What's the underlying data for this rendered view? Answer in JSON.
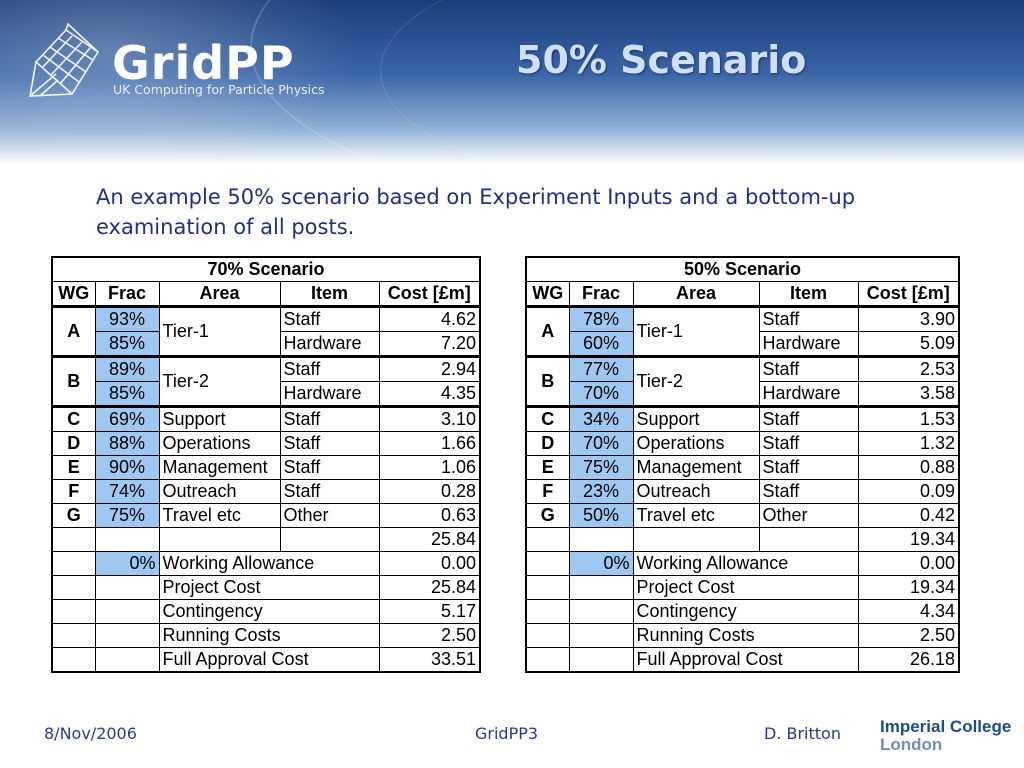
{
  "header": {
    "logo_text": "GridPP",
    "logo_subtitle": "UK Computing for Particle Physics",
    "title": "50% Scenario"
  },
  "intro": "An example 50% scenario based on Experiment Inputs and a bottom-up examination of all posts.",
  "table_left": {
    "title": "70% Scenario",
    "headers": [
      "WG",
      "Frac",
      "Area",
      "Item",
      "Cost [£m]"
    ],
    "tier": [
      {
        "wg": "A",
        "area": "Tier-1",
        "rows": [
          {
            "frac": "93%",
            "item": "Staff",
            "cost": "4.62"
          },
          {
            "frac": "85%",
            "item": "Hardware",
            "cost": "7.20"
          }
        ]
      },
      {
        "wg": "B",
        "area": "Tier-2",
        "rows": [
          {
            "frac": "89%",
            "item": "Staff",
            "cost": "2.94"
          },
          {
            "frac": "85%",
            "item": "Hardware",
            "cost": "4.35"
          }
        ]
      }
    ],
    "single": [
      {
        "wg": "C",
        "frac": "69%",
        "area": "Support",
        "item": "Staff",
        "cost": "3.10"
      },
      {
        "wg": "D",
        "frac": "88%",
        "area": "Operations",
        "item": "Staff",
        "cost": "1.66"
      },
      {
        "wg": "E",
        "frac": "90%",
        "area": "Management",
        "item": "Staff",
        "cost": "1.06"
      },
      {
        "wg": "F",
        "frac": "74%",
        "area": "Outreach",
        "item": "Staff",
        "cost": "0.28"
      },
      {
        "wg": "G",
        "frac": "75%",
        "area": "Travel etc",
        "item": "Other",
        "cost": "0.63"
      }
    ],
    "subtotal": "25.84",
    "wa_frac": "0%",
    "summary": [
      {
        "label": "Working Allowance",
        "cost": "0.00"
      },
      {
        "label": "Project Cost",
        "cost": "25.84"
      },
      {
        "label": "Contingency",
        "cost": "5.17"
      },
      {
        "label": "Running Costs",
        "cost": "2.50"
      },
      {
        "label": "Full Approval Cost",
        "cost": "33.51"
      }
    ]
  },
  "table_right": {
    "title": "50% Scenario",
    "headers": [
      "WG",
      "Frac",
      "Area",
      "Item",
      "Cost [£m]"
    ],
    "tier": [
      {
        "wg": "A",
        "area": "Tier-1",
        "rows": [
          {
            "frac": "78%",
            "item": "Staff",
            "cost": "3.90"
          },
          {
            "frac": "60%",
            "item": "Hardware",
            "cost": "5.09"
          }
        ]
      },
      {
        "wg": "B",
        "area": "Tier-2",
        "rows": [
          {
            "frac": "77%",
            "item": "Staff",
            "cost": "2.53"
          },
          {
            "frac": "70%",
            "item": "Hardware",
            "cost": "3.58"
          }
        ]
      }
    ],
    "single": [
      {
        "wg": "C",
        "frac": "34%",
        "area": "Support",
        "item": "Staff",
        "cost": "1.53"
      },
      {
        "wg": "D",
        "frac": "70%",
        "area": "Operations",
        "item": "Staff",
        "cost": "1.32"
      },
      {
        "wg": "E",
        "frac": "75%",
        "area": "Management",
        "item": "Staff",
        "cost": "0.88"
      },
      {
        "wg": "F",
        "frac": "23%",
        "area": "Outreach",
        "item": "Staff",
        "cost": "0.09"
      },
      {
        "wg": "G",
        "frac": "50%",
        "area": "Travel etc",
        "item": "Other",
        "cost": "0.42"
      }
    ],
    "subtotal": "19.34",
    "wa_frac": "0%",
    "summary": [
      {
        "label": "Working Allowance",
        "cost": "0.00"
      },
      {
        "label": "Project Cost",
        "cost": "19.34"
      },
      {
        "label": "Contingency",
        "cost": "4.34"
      },
      {
        "label": "Running Costs",
        "cost": "2.50"
      },
      {
        "label": "Full Approval Cost",
        "cost": "26.18"
      }
    ]
  },
  "footer": {
    "date": "8/Nov/2006",
    "center": "GridPP3",
    "author": "D. Britton",
    "institution_line1": "Imperial College",
    "institution_line2": "London"
  },
  "colors": {
    "frac_highlight": "#9ec8f2",
    "title_color": "#cfe0f4",
    "text_blue": "#1f2f86"
  }
}
